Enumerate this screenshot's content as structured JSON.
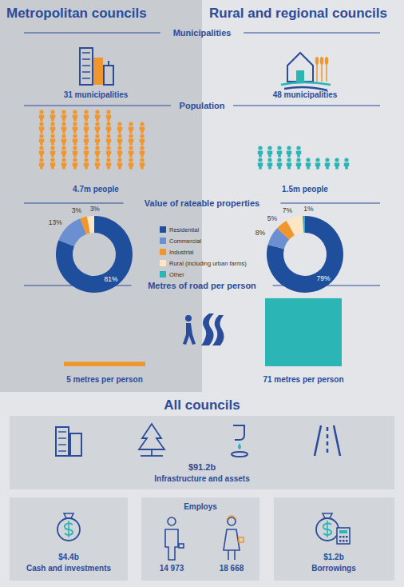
{
  "columns": [
    "Metropolitan councils",
    "Rural and regional councils"
  ],
  "sections": {
    "municipalities": "Municipalities",
    "population": "Population",
    "properties": "Value of rateable properties",
    "roads": "Metres of road per person"
  },
  "municipalities": [
    "31 municipalities",
    "48 municipalities"
  ],
  "population": [
    {
      "value": 4.7,
      "label": "4.7m people",
      "color": "#f0962d"
    },
    {
      "value": 1.5,
      "label": "1.5m people",
      "color": "#2cb5b5"
    }
  ],
  "chart_data": [
    {
      "type": "pie",
      "categories": [
        "Residential",
        "Commercial",
        "Industrial",
        "Rural (including urban farms)",
        "Other"
      ],
      "values": [
        81,
        13,
        3,
        3,
        0
      ],
      "value_labels": [
        "81%",
        "13%",
        "3%",
        "3%",
        null
      ],
      "colors": [
        "#1f4e9c",
        "#6b8fd0",
        "#f0962d",
        "#fde6c4",
        "#2cb5b5"
      ],
      "data_labels": true
    },
    {
      "type": "pie",
      "categories": [
        "Residential",
        "Commercial",
        "Industrial",
        "Rural (including urban farms)",
        "Other"
      ],
      "values": [
        79,
        8,
        5,
        7,
        1
      ],
      "value_labels": [
        "79%",
        "8%",
        "5%",
        "7%",
        "1%"
      ],
      "colors": [
        "#1f4e9c",
        "#6b8fd0",
        "#f0962d",
        "#fde6c4",
        "#2cb5b5"
      ],
      "data_labels": true
    }
  ],
  "roads": [
    {
      "value": 5,
      "label": "5 metres per person",
      "color": "#f0962d"
    },
    {
      "value": 71,
      "label": "71 metres per person",
      "color": "#2cb5b5"
    }
  ],
  "all_councils": {
    "title": "All councils",
    "infrastructure": {
      "amount": "$91.2b",
      "label": "Infrastructure and assets"
    },
    "cash": {
      "amount": "$4.4b",
      "label": "Cash and investments"
    },
    "employs": {
      "title": "Employs",
      "values": [
        "14 973",
        "18 668"
      ]
    },
    "borrowings": {
      "amount": "$1.2b",
      "label": "Borrowings"
    }
  }
}
